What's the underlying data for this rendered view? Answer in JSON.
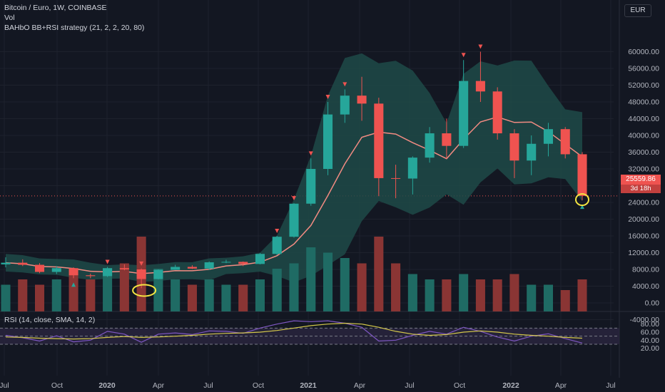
{
  "header": {
    "symbol_line": "Bitcoin / Euro, 1W, COINBASE",
    "vol_label": "Vol",
    "strategy_label": "BAHbO BB+RSI strategy (21, 2, 2, 20, 80)",
    "currency": "EUR"
  },
  "price_tag": {
    "value": "25559.86",
    "countdown": "3d 18h"
  },
  "rsi_panel": {
    "label": "RSI (14, close, SMA, 14, 2)"
  },
  "colors": {
    "background": "#131722",
    "bull": "#26a69a",
    "bear": "#ef5350",
    "band_fill": "#1e4a48",
    "basis": "#f28b82",
    "rsi_line": "#7e57c2",
    "rsi_sma": "#d4c84a",
    "rsi_band": "#2a2540",
    "highlight": "#f5e642"
  },
  "chart_data": [
    {
      "type": "candlestick",
      "title": "Bitcoin / Euro, 1W, COINBASE",
      "ylabel": "EUR",
      "y_ticks": [
        "60000.00",
        "56000.00",
        "52000.00",
        "48000.00",
        "44000.00",
        "40000.00",
        "36000.00",
        "32000.00",
        "28000.00",
        "24000.00",
        "20000.00",
        "16000.00",
        "12000.00",
        "8000.00",
        "4000.00",
        "0.00",
        "-4000.00"
      ],
      "x_ticks": [
        "Jul",
        "Oct",
        "2020",
        "Apr",
        "Jul",
        "Oct",
        "2021",
        "Apr",
        "Jul",
        "Oct",
        "2022",
        "Apr",
        "Jul"
      ],
      "series": [
        {
          "name": "Price",
          "points": [
            {
              "x": "2019-07",
              "open": 9200,
              "high": 10900,
              "low": 8500,
              "close": 9600
            },
            {
              "x": "2019-08",
              "open": 9600,
              "high": 10400,
              "low": 8800,
              "close": 9100
            },
            {
              "x": "2019-09",
              "open": 9100,
              "high": 9500,
              "low": 7100,
              "close": 7400
            },
            {
              "x": "2019-10",
              "open": 7400,
              "high": 8800,
              "low": 6900,
              "close": 8300
            },
            {
              "x": "2019-11",
              "open": 8300,
              "high": 8500,
              "low": 5900,
              "close": 6600
            },
            {
              "x": "2019-12",
              "open": 6600,
              "high": 7000,
              "low": 5900,
              "close": 6400
            },
            {
              "x": "2020-01",
              "open": 6400,
              "high": 8600,
              "low": 6200,
              "close": 8300
            },
            {
              "x": "2020-02",
              "open": 8300,
              "high": 9200,
              "low": 7800,
              "close": 8000
            },
            {
              "x": "2020-03",
              "open": 8000,
              "high": 8200,
              "low": 3500,
              "close": 5700
            },
            {
              "x": "2020-04",
              "open": 5700,
              "high": 8000,
              "low": 5600,
              "close": 7900
            },
            {
              "x": "2020-05",
              "open": 7900,
              "high": 9100,
              "low": 7900,
              "close": 8600
            },
            {
              "x": "2020-06",
              "open": 8600,
              "high": 9000,
              "low": 8100,
              "close": 8200
            },
            {
              "x": "2020-07",
              "open": 8200,
              "high": 9900,
              "low": 7900,
              "close": 9700
            },
            {
              "x": "2020-08",
              "open": 9700,
              "high": 10300,
              "low": 9500,
              "close": 9800
            },
            {
              "x": "2020-09",
              "open": 9800,
              "high": 9900,
              "low": 8800,
              "close": 9300
            },
            {
              "x": "2020-10",
              "open": 9300,
              "high": 11900,
              "low": 9200,
              "close": 11700
            },
            {
              "x": "2020-11",
              "open": 11700,
              "high": 16000,
              "low": 11400,
              "close": 15800
            },
            {
              "x": "2020-12",
              "open": 15800,
              "high": 23800,
              "low": 15600,
              "close": 23700
            },
            {
              "x": "2021-01",
              "open": 23700,
              "high": 34500,
              "low": 23200,
              "close": 32000
            },
            {
              "x": "2021-02",
              "open": 32000,
              "high": 48000,
              "low": 30500,
              "close": 45000
            },
            {
              "x": "2021-03",
              "open": 45000,
              "high": 51000,
              "low": 43000,
              "close": 49500
            },
            {
              "x": "2021-04",
              "open": 49500,
              "high": 54000,
              "low": 43500,
              "close": 47600
            },
            {
              "x": "2021-05",
              "open": 47600,
              "high": 49000,
              "low": 25500,
              "close": 29800
            },
            {
              "x": "2021-06",
              "open": 29800,
              "high": 33000,
              "low": 25000,
              "close": 29700
            },
            {
              "x": "2021-07",
              "open": 29700,
              "high": 35000,
              "low": 25900,
              "close": 34700
            },
            {
              "x": "2021-08",
              "open": 34700,
              "high": 42000,
              "low": 33500,
              "close": 40500
            },
            {
              "x": "2021-09",
              "open": 40500,
              "high": 44000,
              "low": 34500,
              "close": 37500
            },
            {
              "x": "2021-10",
              "open": 37500,
              "high": 58000,
              "low": 37000,
              "close": 53000
            },
            {
              "x": "2021-11",
              "open": 53000,
              "high": 60000,
              "low": 48000,
              "close": 50500
            },
            {
              "x": "2021-12",
              "open": 50500,
              "high": 51500,
              "low": 39000,
              "close": 40500
            },
            {
              "x": "2022-01",
              "open": 40500,
              "high": 41500,
              "low": 29800,
              "close": 34000
            },
            {
              "x": "2022-02",
              "open": 34000,
              "high": 40000,
              "low": 30500,
              "close": 38000
            },
            {
              "x": "2022-03",
              "open": 38000,
              "high": 43000,
              "low": 35000,
              "close": 41500
            },
            {
              "x": "2022-04",
              "open": 41500,
              "high": 42000,
              "low": 34500,
              "close": 35500
            },
            {
              "x": "2022-05",
              "open": 35500,
              "high": 36000,
              "low": 24500,
              "close": 25559.86
            }
          ]
        }
      ],
      "bollinger_bands": {
        "period": 20,
        "mult": 2
      },
      "markers": [
        {
          "x": "2019-11",
          "type": "buy"
        },
        {
          "x": "2020-01",
          "type": "sell"
        },
        {
          "x": "2020-03",
          "type": "sell"
        },
        {
          "x": "2020-11",
          "type": "sell"
        },
        {
          "x": "2020-12",
          "type": "sell"
        },
        {
          "x": "2021-01",
          "type": "sell"
        },
        {
          "x": "2021-02",
          "type": "sell"
        },
        {
          "x": "2021-03",
          "type": "sell"
        },
        {
          "x": "2021-10",
          "type": "sell"
        },
        {
          "x": "2021-11",
          "type": "sell"
        },
        {
          "x": "2022-05",
          "type": "buy"
        }
      ],
      "volume": [
        5,
        6,
        5,
        6,
        7,
        6,
        8,
        9,
        14,
        8,
        6,
        5,
        6,
        5,
        5,
        6,
        8,
        9,
        12,
        11,
        10,
        9,
        14,
        9,
        7,
        6,
        6,
        7,
        6,
        6,
        7,
        5,
        5,
        4,
        6
      ],
      "last_price": 25559.86
    },
    {
      "type": "line",
      "title": "RSI (14, close, SMA, 14, 2)",
      "y_ticks": [
        "80.00",
        "60.00",
        "40.00",
        "20.00"
      ],
      "bands": [
        30,
        50,
        70
      ],
      "series": [
        {
          "name": "RSI",
          "values": [
            52,
            46,
            38,
            51,
            36,
            40,
            62,
            55,
            35,
            55,
            58,
            54,
            63,
            62,
            57,
            70,
            80,
            88,
            86,
            88,
            82,
            72,
            38,
            40,
            52,
            62,
            55,
            72,
            62,
            48,
            38,
            50,
            56,
            44,
            33
          ]
        },
        {
          "name": "RSI SMA",
          "values": [
            48,
            47,
            45,
            44,
            43,
            44,
            47,
            49,
            47,
            48,
            50,
            52,
            55,
            57,
            58,
            60,
            64,
            70,
            76,
            80,
            82,
            80,
            72,
            62,
            55,
            52,
            54,
            60,
            63,
            60,
            55,
            52,
            50,
            47,
            45
          ]
        }
      ]
    }
  ]
}
